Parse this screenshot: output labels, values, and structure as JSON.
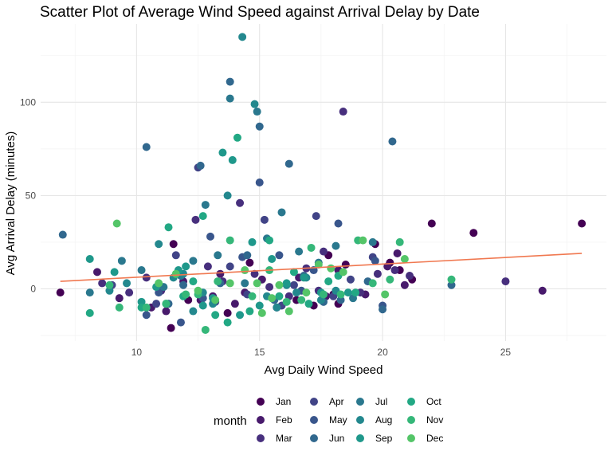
{
  "chart_data": {
    "type": "scatter",
    "title": "Scatter Plot of Average Wind Speed against Arrival Delay by Date",
    "xlabel": "Avg Daily Wind Speed",
    "ylabel": "Avg Arrival Delay (minutes)",
    "xlim": [
      6.1,
      29.1
    ],
    "ylim": [
      -28,
      142
    ],
    "x_ticks": [
      10,
      15,
      20,
      25
    ],
    "y_ticks": [
      0,
      50,
      100
    ],
    "x_tick_labels": [
      "10",
      "15",
      "20",
      "25"
    ],
    "y_tick_labels": [
      "0",
      "50",
      "100"
    ],
    "grid": true,
    "legend": {
      "title": "month",
      "placement": "bottom",
      "entries": [
        {
          "label": "Jan",
          "color": "#440154"
        },
        {
          "label": "Feb",
          "color": "#481A6C"
        },
        {
          "label": "Mar",
          "color": "#472F7D"
        },
        {
          "label": "Apr",
          "color": "#414487"
        },
        {
          "label": "May",
          "color": "#39568C"
        },
        {
          "label": "Jun",
          "color": "#31688E"
        },
        {
          "label": "Jul",
          "color": "#2A788E"
        },
        {
          "label": "Aug",
          "color": "#23888E"
        },
        {
          "label": "Sep",
          "color": "#1F988B"
        },
        {
          "label": "Oct",
          "color": "#22A884"
        },
        {
          "label": "Nov",
          "color": "#35B779"
        },
        {
          "label": "Dec",
          "color": "#54C568"
        }
      ]
    },
    "trend_line": {
      "color": "#F07850",
      "x": [
        6.9,
        28.1
      ],
      "y": [
        4,
        19
      ]
    },
    "series": [
      {
        "name": "Jan",
        "color": "#440154",
        "x": [
          6.9,
          11.4,
          11.5,
          12.1,
          13.7,
          14.6,
          16.5,
          17.2,
          17.8,
          18.0,
          18.2,
          18.5,
          19.7,
          20.3,
          20.7,
          21.2,
          22.0,
          23.7,
          28.1
        ],
        "y": [
          -2,
          -21,
          24,
          -6,
          -13,
          14,
          -6,
          -9,
          18,
          -3,
          -8,
          13,
          24,
          14,
          10,
          5,
          35,
          30,
          35
        ]
      },
      {
        "name": "Feb",
        "color": "#481A6C",
        "x": [
          8.4,
          9.3,
          10.6,
          11.2,
          11.9,
          12.6,
          13.1,
          13.4,
          14.0,
          14.4,
          15.1,
          15.7,
          16.6,
          17.7,
          18.2,
          19.3,
          20.2,
          20.6,
          20.9,
          26.5
        ],
        "y": [
          9,
          -5,
          -10,
          -12,
          4,
          -6,
          -4,
          8,
          -8,
          -2,
          5,
          -10,
          6,
          -4,
          10,
          -3,
          12,
          19,
          2,
          -1
        ]
      },
      {
        "name": "Mar",
        "color": "#472F7D",
        "x": [
          8.6,
          9.7,
          10.4,
          11.0,
          12.4,
          12.9,
          13.5,
          14.2,
          14.8,
          15.4,
          16.2,
          16.9,
          17.4,
          17.6,
          18.4,
          19.1,
          19.8,
          20.5,
          21.1,
          25.0
        ],
        "y": [
          3,
          -2,
          6,
          -1,
          37,
          12,
          4,
          46,
          8,
          1,
          -4,
          11,
          -1,
          20,
          95,
          -2,
          8,
          10,
          7,
          4
        ]
      },
      {
        "name": "Apr",
        "color": "#414487",
        "x": [
          9.0,
          10.8,
          11.6,
          12.5,
          13.2,
          13.8,
          14.5,
          15.2,
          15.9,
          16.4,
          17.3,
          18.0,
          18.7,
          19.6
        ],
        "y": [
          2,
          -8,
          18,
          65,
          -7,
          12,
          -3,
          37,
          -9,
          2,
          39,
          -4,
          5,
          17
        ]
      },
      {
        "name": "May",
        "color": "#39568C",
        "x": [
          10.4,
          10.9,
          11.8,
          12.7,
          13.0,
          14.3,
          15.0,
          15.8,
          16.7,
          17.2,
          18.2,
          19.7,
          20.0
        ],
        "y": [
          -14,
          -2,
          -18,
          -5,
          28,
          17,
          57,
          18,
          -1,
          10,
          35,
          15,
          -9
        ]
      },
      {
        "name": "Jun",
        "color": "#31688E",
        "x": [
          7.0,
          10.4,
          11.3,
          11.9,
          12.6,
          13.4,
          13.8,
          14.5,
          15.0,
          15.6,
          16.2,
          16.8,
          17.6,
          18.3,
          19.4,
          20.0,
          20.4,
          22.8
        ],
        "y": [
          29,
          76,
          -8,
          2,
          66,
          3,
          111,
          18,
          87,
          -6,
          67,
          7,
          -7,
          -6,
          4,
          -11,
          79,
          2
        ]
      },
      {
        "name": "Jul",
        "color": "#2A788E",
        "x": [
          8.1,
          9.4,
          10.2,
          11.1,
          11.8,
          12.3,
          12.8,
          13.3,
          13.8,
          14.4,
          14.9,
          15.3,
          15.9,
          16.6,
          17.4,
          18.1,
          18.8,
          19.6
        ],
        "y": [
          -2,
          15,
          10,
          1,
          7,
          15,
          45,
          18,
          102,
          3,
          95,
          27,
          41,
          20,
          14,
          23,
          -5,
          25
        ]
      },
      {
        "name": "Aug",
        "color": "#23888E",
        "x": [
          8.9,
          9.6,
          10.9,
          11.5,
          11.9,
          12.3,
          12.7,
          13.1,
          13.7,
          14.3,
          14.8,
          15.3,
          15.7,
          16.1,
          16.5,
          16.9,
          17.5,
          18.1
        ],
        "y": [
          -1,
          3,
          24,
          6,
          8,
          -12,
          -2,
          -8,
          50,
          135,
          99,
          -4,
          -10,
          2,
          -2,
          6,
          -6,
          -1
        ]
      },
      {
        "name": "Sep",
        "color": "#1F988B",
        "x": [
          8.1,
          9.1,
          10.2,
          10.8,
          11.2,
          11.7,
          12.0,
          12.7,
          13.1,
          13.5,
          13.9,
          14.2,
          14.7,
          15.0,
          15.5,
          16.1,
          16.8,
          17.5,
          18.6
        ],
        "y": [
          16,
          9,
          -7,
          1,
          -8,
          10,
          12,
          -9,
          -5,
          73,
          69,
          -14,
          25,
          -9,
          16,
          3,
          6,
          -2,
          -2
        ]
      },
      {
        "name": "Oct",
        "color": "#22A884",
        "x": [
          8.1,
          10.2,
          11.3,
          11.9,
          12.3,
          12.7,
          13.2,
          13.7,
          14.1,
          14.6,
          15.4,
          15.8,
          16.4,
          17.0,
          17.8,
          18.2,
          18.9
        ],
        "y": [
          -13,
          -10,
          33,
          -4,
          4,
          39,
          -14,
          -18,
          81,
          -12,
          26,
          -4,
          9,
          -8,
          4,
          7,
          -2
        ]
      },
      {
        "name": "Nov",
        "color": "#35B779",
        "x": [
          8.9,
          9.3,
          10.4,
          11.2,
          12.0,
          12.5,
          12.8,
          13.3,
          13.8,
          14.7,
          15.4,
          16.1,
          16.7,
          17.1,
          17.6,
          18.3,
          19.0,
          19.6,
          20.3,
          20.7,
          22.8
        ],
        "y": [
          2,
          -10,
          -10,
          -8,
          -3,
          -3,
          -22,
          4,
          26,
          -4,
          10,
          -7,
          -6,
          22,
          -3,
          -3,
          26,
          3,
          5,
          25,
          5
        ]
      },
      {
        "name": "Dec",
        "color": "#54C568",
        "x": [
          9.2,
          10.9,
          11.6,
          12.5,
          13.2,
          13.8,
          14.4,
          14.9,
          15.1,
          15.5,
          15.8,
          16.2,
          16.9,
          17.4,
          17.9,
          18.4,
          19.2,
          20.1,
          20.9
        ],
        "y": [
          35,
          3,
          8,
          -1,
          -6,
          3,
          10,
          3,
          -13,
          -5,
          2,
          -12,
          -2,
          13,
          11,
          9,
          26,
          -3,
          16
        ]
      }
    ]
  }
}
